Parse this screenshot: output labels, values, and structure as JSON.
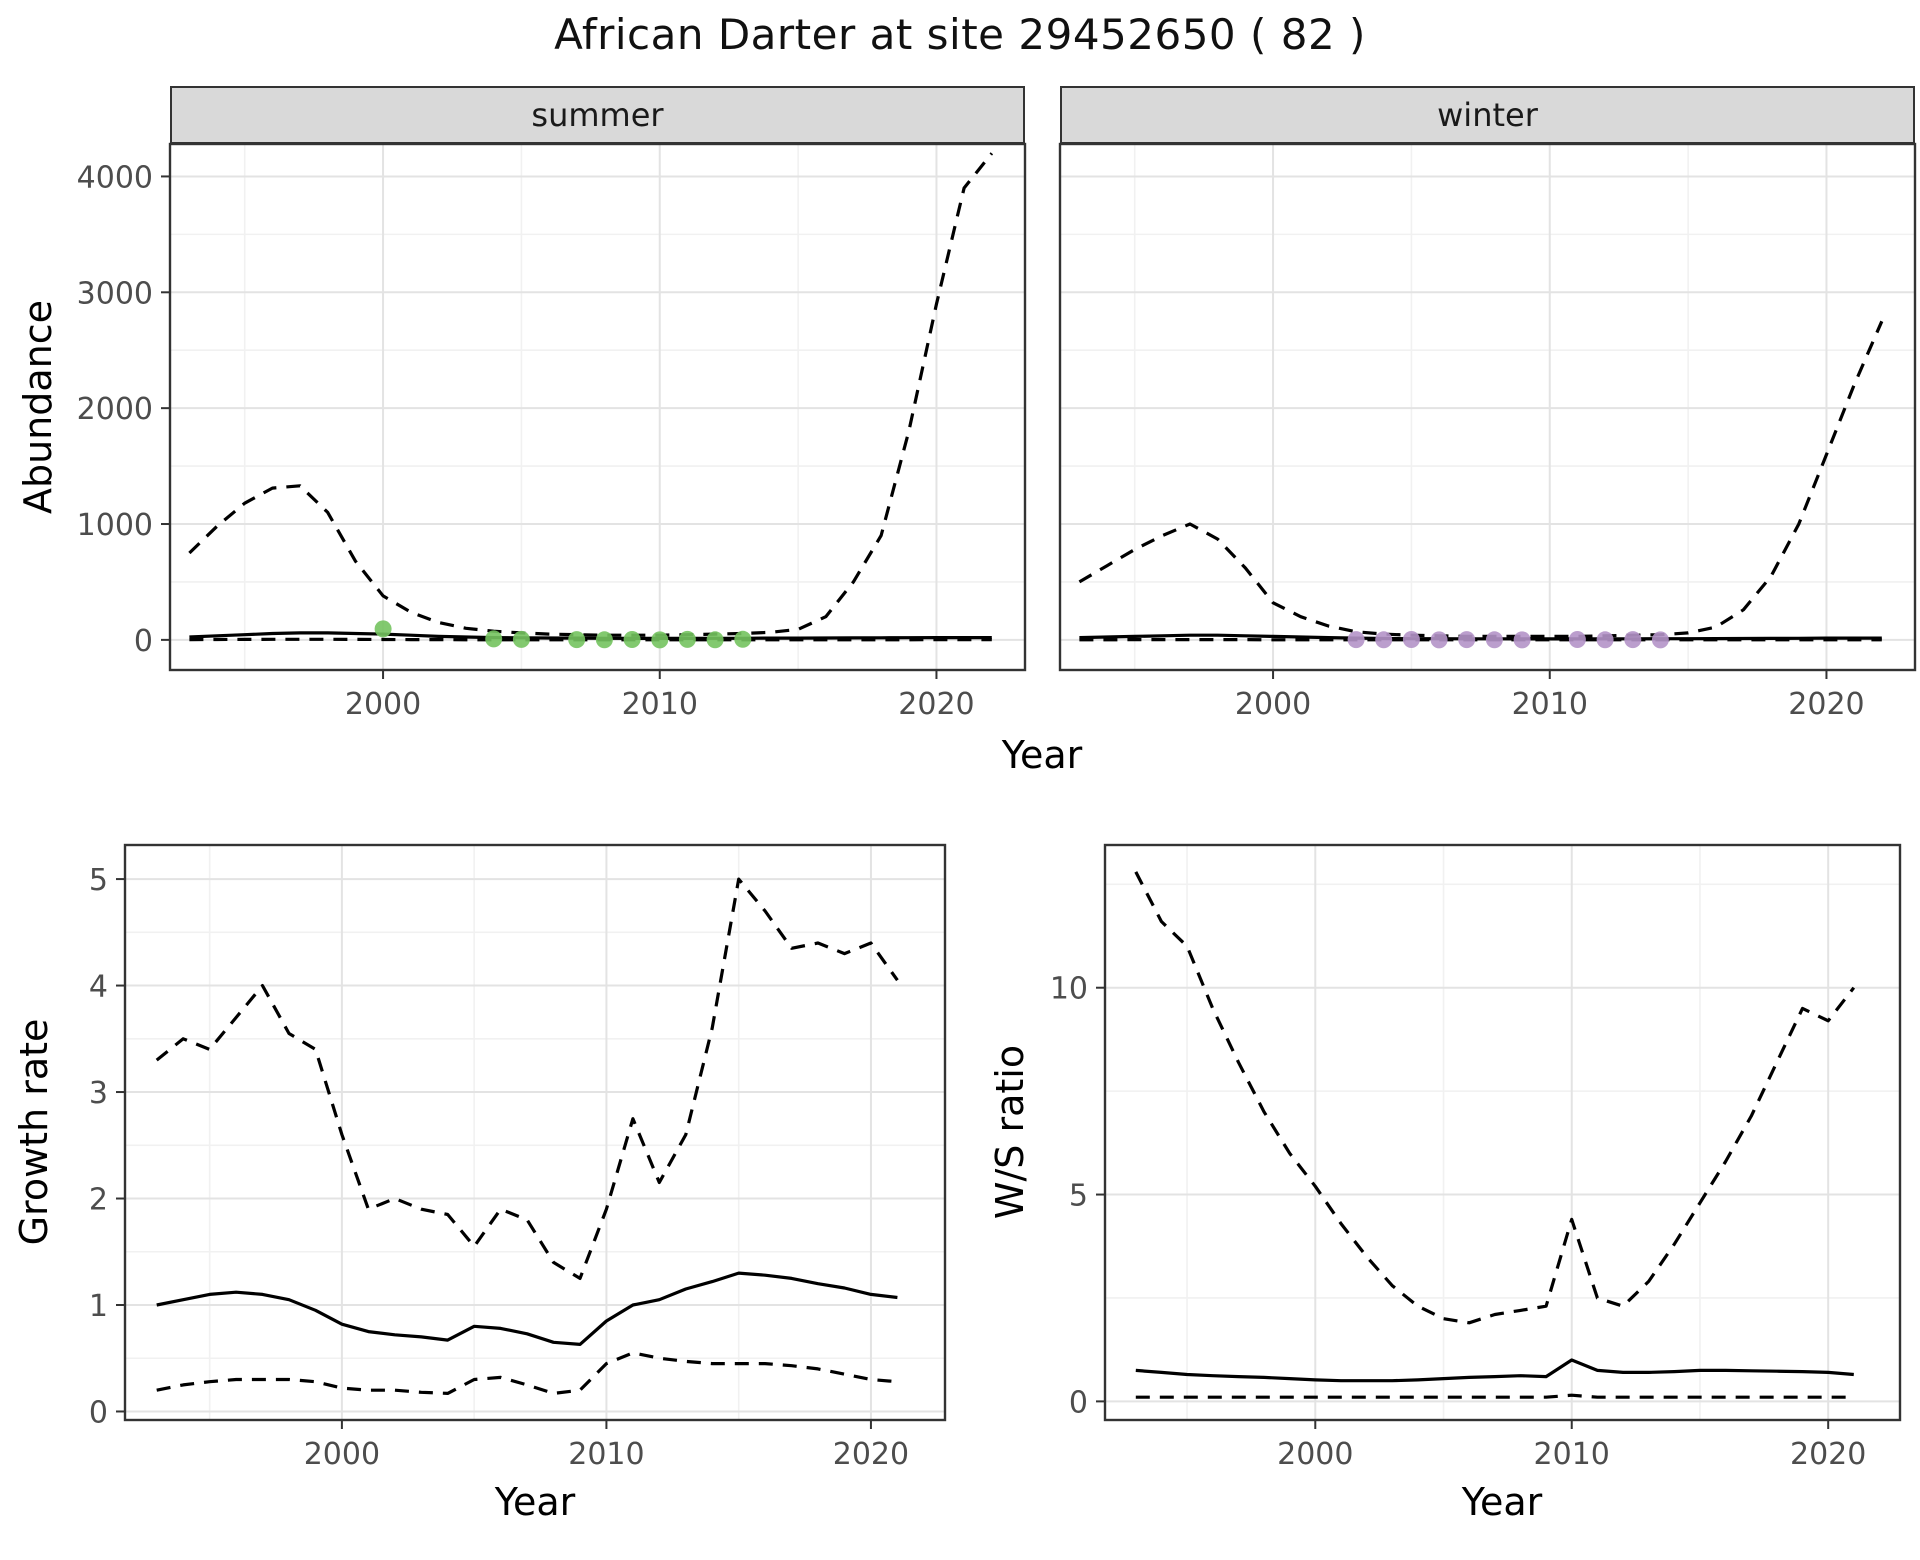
{
  "title": "African Darter at site 29452650 ( 82 )",
  "colors": {
    "line": "#000000",
    "summer_points": "#74c35f",
    "winter_points": "#b493c8",
    "strip_bg": "#d9d9d9",
    "grid_major": "#e3e3e3",
    "grid_minor": "#f1f1f1",
    "panel_border": "#333333",
    "tick_text": "#4d4d4d"
  },
  "chart_data": [
    {
      "type": "line",
      "id": "abundance",
      "ylabel": "Abundance",
      "xlabel": "Year",
      "xlim": [
        1992.3,
        2023.2
      ],
      "ylim": [
        -260,
        4280
      ],
      "x_ticks": [
        2000,
        2010,
        2020
      ],
      "x_minor": [
        1995,
        2005,
        2015
      ],
      "y_ticks": [
        0,
        1000,
        2000,
        3000,
        4000
      ],
      "y_minor": [
        500,
        1500,
        2500,
        3500
      ],
      "years": [
        1993,
        1994,
        1995,
        1996,
        1997,
        1998,
        1999,
        2000,
        2001,
        2002,
        2003,
        2004,
        2005,
        2006,
        2007,
        2008,
        2009,
        2010,
        2011,
        2012,
        2013,
        2014,
        2015,
        2016,
        2017,
        2018,
        2019,
        2020,
        2021,
        2022
      ],
      "facets": [
        {
          "name": "summer",
          "upper_ci": [
            750,
            980,
            1180,
            1310,
            1330,
            1100,
            680,
            380,
            240,
            150,
            100,
            75,
            60,
            50,
            45,
            40,
            40,
            40,
            45,
            50,
            55,
            65,
            90,
            200,
            500,
            900,
            1800,
            2900,
            3900,
            4200
          ],
          "median": [
            25,
            35,
            45,
            55,
            60,
            60,
            55,
            50,
            40,
            30,
            25,
            20,
            18,
            16,
            15,
            14,
            13,
            13,
            13,
            14,
            14,
            15,
            15,
            16,
            17,
            18,
            19,
            20,
            20,
            20
          ],
          "lower_ci": [
            2,
            3,
            4,
            5,
            5,
            5,
            4,
            3,
            2,
            2,
            1,
            1,
            1,
            1,
            1,
            1,
            1,
            1,
            1,
            1,
            1,
            1,
            1,
            1,
            1,
            1,
            1,
            2,
            2,
            2
          ],
          "observed": {
            "years": [
              2000,
              2004,
              2005,
              2007,
              2008,
              2009,
              2010,
              2011,
              2012,
              2013
            ],
            "values": [
              95,
              8,
              4,
              2,
              1,
              3,
              0,
              4,
              1,
              5
            ]
          }
        },
        {
          "name": "winter",
          "upper_ci": [
            500,
            640,
            780,
            900,
            1000,
            870,
            620,
            320,
            200,
            120,
            70,
            50,
            40,
            35,
            30,
            30,
            30,
            30,
            30,
            35,
            40,
            45,
            60,
            110,
            260,
            550,
            1000,
            1600,
            2200,
            2750
          ],
          "median": [
            20,
            25,
            30,
            35,
            40,
            40,
            35,
            30,
            25,
            20,
            15,
            12,
            10,
            10,
            9,
            9,
            8,
            8,
            8,
            9,
            9,
            10,
            10,
            11,
            12,
            13,
            14,
            15,
            15,
            15
          ],
          "lower_ci": [
            1,
            1,
            2,
            2,
            2,
            2,
            2,
            1,
            1,
            1,
            1,
            1,
            1,
            1,
            1,
            1,
            1,
            1,
            1,
            1,
            1,
            1,
            1,
            1,
            1,
            1,
            1,
            1,
            1,
            1
          ],
          "observed": {
            "years": [
              2003,
              2004,
              2005,
              2006,
              2007,
              2008,
              2009,
              2011,
              2012,
              2013,
              2014
            ],
            "values": [
              2,
              1,
              3,
              0,
              2,
              1,
              0,
              3,
              1,
              2,
              0
            ]
          }
        }
      ]
    },
    {
      "type": "line",
      "id": "growth_rate",
      "ylabel": "Growth rate",
      "xlabel": "Year",
      "xlim": [
        1991.8,
        2022.8
      ],
      "ylim": [
        -0.08,
        5.32
      ],
      "x_ticks": [
        2000,
        2010,
        2020
      ],
      "x_minor": [
        1995,
        2005,
        2015
      ],
      "y_ticks": [
        0,
        1,
        2,
        3,
        4,
        5
      ],
      "y_minor": [
        0.5,
        1.5,
        2.5,
        3.5,
        4.5
      ],
      "years": [
        1993,
        1994,
        1995,
        1996,
        1997,
        1998,
        1999,
        2000,
        2001,
        2002,
        2003,
        2004,
        2005,
        2006,
        2007,
        2008,
        2009,
        2010,
        2011,
        2012,
        2013,
        2014,
        2015,
        2016,
        2017,
        2018,
        2019,
        2020,
        2021
      ],
      "upper_ci": [
        3.3,
        3.5,
        3.4,
        3.7,
        4.0,
        3.55,
        3.4,
        2.6,
        1.9,
        2.0,
        1.9,
        1.85,
        1.55,
        1.9,
        1.8,
        1.4,
        1.25,
        1.9,
        2.75,
        2.15,
        2.6,
        3.6,
        5.0,
        4.7,
        4.35,
        4.4,
        4.3,
        4.4,
        4.05
      ],
      "median": [
        1.0,
        1.05,
        1.1,
        1.12,
        1.1,
        1.05,
        0.95,
        0.82,
        0.75,
        0.72,
        0.7,
        0.67,
        0.8,
        0.78,
        0.73,
        0.65,
        0.63,
        0.85,
        1.0,
        1.05,
        1.15,
        1.22,
        1.3,
        1.28,
        1.25,
        1.2,
        1.16,
        1.1,
        1.07
      ],
      "lower_ci": [
        0.2,
        0.25,
        0.28,
        0.3,
        0.3,
        0.3,
        0.28,
        0.22,
        0.2,
        0.2,
        0.18,
        0.17,
        0.3,
        0.32,
        0.25,
        0.17,
        0.2,
        0.45,
        0.55,
        0.5,
        0.47,
        0.45,
        0.45,
        0.45,
        0.43,
        0.4,
        0.35,
        0.3,
        0.28
      ]
    },
    {
      "type": "line",
      "id": "ws_ratio",
      "ylabel": "W/S ratio",
      "xlabel": "Year",
      "xlim": [
        1991.8,
        2022.8
      ],
      "ylim": [
        -0.45,
        13.45
      ],
      "x_ticks": [
        2000,
        2010,
        2020
      ],
      "x_minor": [
        1995,
        2005,
        2015
      ],
      "y_ticks": [
        0,
        5,
        10
      ],
      "y_minor": [
        2.5,
        7.5,
        12.5
      ],
      "years": [
        1993,
        1994,
        1995,
        1996,
        1997,
        1998,
        1999,
        2000,
        2001,
        2002,
        2003,
        2004,
        2005,
        2006,
        2007,
        2008,
        2009,
        2010,
        2011,
        2012,
        2013,
        2014,
        2015,
        2016,
        2017,
        2018,
        2019,
        2020,
        2021
      ],
      "upper_ci": [
        12.8,
        11.6,
        11.0,
        9.5,
        8.2,
        7.0,
        6.0,
        5.2,
        4.3,
        3.5,
        2.8,
        2.3,
        2.0,
        1.9,
        2.1,
        2.2,
        2.3,
        4.4,
        2.5,
        2.3,
        2.9,
        3.8,
        4.8,
        5.8,
        6.9,
        8.2,
        9.5,
        9.2,
        10.0
      ],
      "median": [
        0.75,
        0.7,
        0.65,
        0.62,
        0.6,
        0.58,
        0.55,
        0.52,
        0.5,
        0.5,
        0.5,
        0.52,
        0.55,
        0.58,
        0.6,
        0.62,
        0.6,
        1.0,
        0.75,
        0.7,
        0.7,
        0.72,
        0.75,
        0.75,
        0.74,
        0.73,
        0.72,
        0.7,
        0.65
      ],
      "lower_ci": [
        0.1,
        0.1,
        0.1,
        0.1,
        0.1,
        0.1,
        0.1,
        0.1,
        0.1,
        0.1,
        0.1,
        0.1,
        0.1,
        0.1,
        0.1,
        0.1,
        0.1,
        0.15,
        0.1,
        0.1,
        0.1,
        0.1,
        0.1,
        0.1,
        0.1,
        0.1,
        0.1,
        0.1,
        0.1
      ]
    }
  ]
}
